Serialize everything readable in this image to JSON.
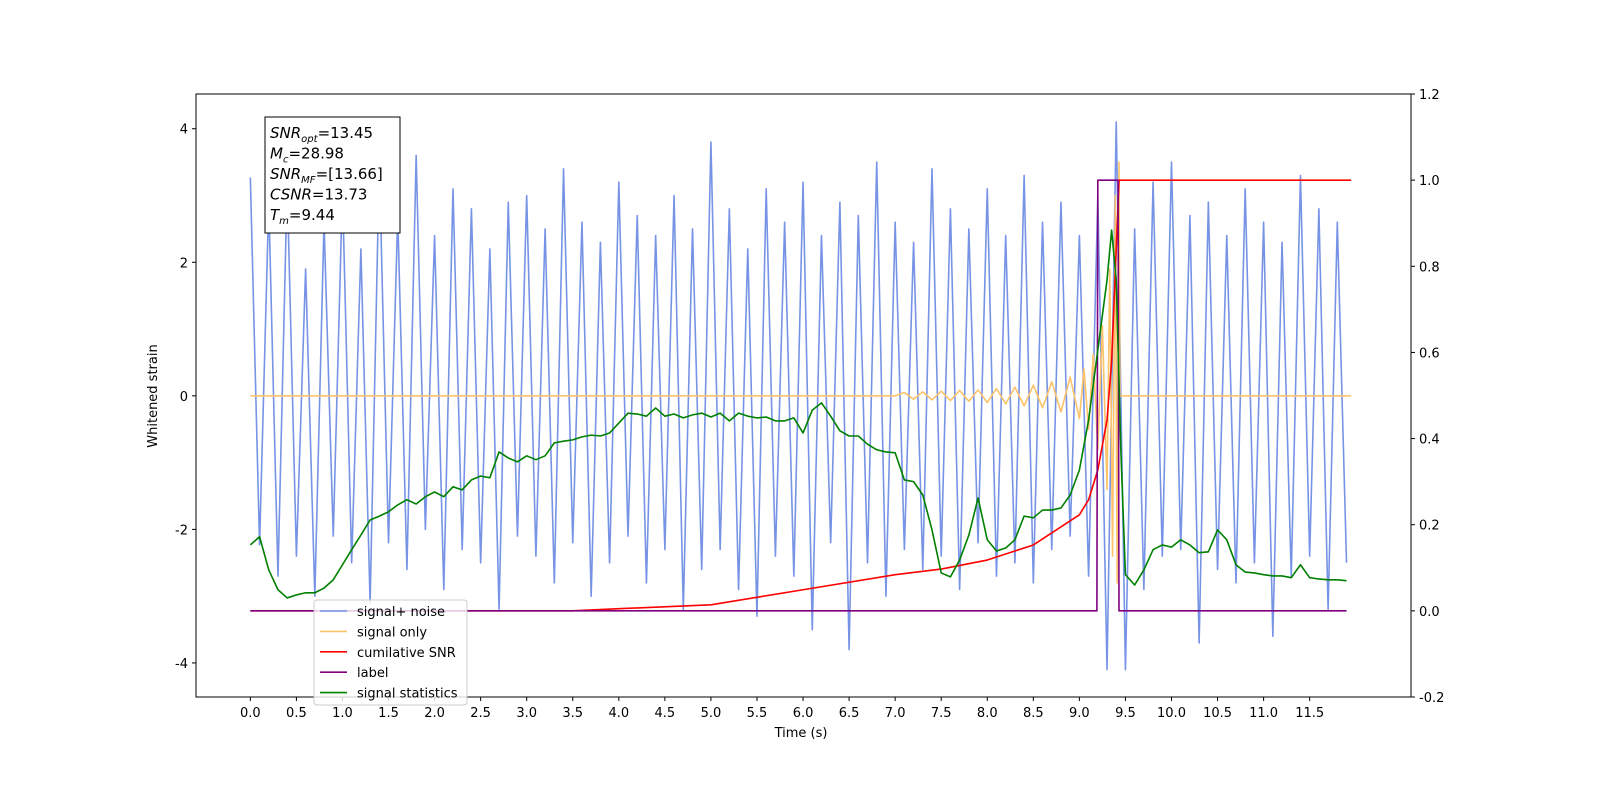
{
  "chart_data": {
    "type": "line",
    "xlabel": "Time (s)",
    "ylabel": "Whitened strain",
    "xlim": [
      -0.59,
      12.6
    ],
    "ylim": [
      -4.51,
      4.52
    ],
    "y2lim": [
      -0.2,
      1.2
    ],
    "xticks": [
      {
        "value": 0,
        "label": "0.0"
      },
      0.5,
      {
        "value": 1,
        "label": "1.0"
      },
      1.5,
      {
        "value": 2,
        "label": "2.0"
      },
      2.5,
      {
        "value": 3,
        "label": "3.0"
      },
      3.5,
      {
        "value": 4,
        "label": "4.0"
      },
      4.5,
      {
        "value": 5,
        "label": "5.0"
      },
      5.5,
      {
        "value": 6,
        "label": "6.0"
      },
      6.5,
      {
        "value": 7,
        "label": "7.0"
      },
      7.5,
      {
        "value": 8,
        "label": "8.0"
      },
      8.5,
      {
        "value": 9,
        "label": "9.0"
      },
      9.5,
      {
        "value": 10,
        "label": "10.0"
      },
      10.5,
      {
        "value": 11,
        "label": "11.0"
      },
      11.5
    ],
    "yticks": [
      -4,
      -2,
      0,
      2,
      4
    ],
    "y2ticks": [
      -0.2,
      {
        "value": 0,
        "label": "0.0"
      },
      0.2,
      0.4,
      0.6,
      0.8,
      {
        "value": 1,
        "label": "1.0"
      },
      1.2
    ],
    "legend": "lower left",
    "annotations": [
      {
        "main": "SNR",
        "sub": "opt",
        "rest": "=13.45"
      },
      {
        "main": "M",
        "sub": "c",
        "rest": "=28.98"
      },
      {
        "main": "SNR",
        "sub": "MF",
        "rest": "=[13.66]"
      },
      {
        "main": "CSNR",
        "rest": "=13.73"
      },
      {
        "main": "T",
        "sub": "m",
        "rest": "=9.44"
      }
    ],
    "series": [
      {
        "name": "signal+ noise",
        "color": "#7793e6",
        "x": [
          0.0,
          0.1,
          0.2,
          0.3,
          0.4,
          0.5,
          0.6,
          0.7,
          0.8,
          0.9,
          1.0,
          1.1,
          1.2,
          1.3,
          1.4,
          1.5,
          1.6,
          1.7,
          1.8,
          1.9,
          2.0,
          2.1,
          2.2,
          2.3,
          2.4,
          2.5,
          2.6,
          2.7,
          2.8,
          2.9,
          3.0,
          3.1,
          3.2,
          3.3,
          3.4,
          3.5,
          3.6,
          3.7,
          3.8,
          3.9,
          4.0,
          4.1,
          4.2,
          4.3,
          4.4,
          4.5,
          4.6,
          4.7,
          4.8,
          4.9,
          5.0,
          5.1,
          5.2,
          5.3,
          5.4,
          5.5,
          5.6,
          5.7,
          5.8,
          5.9,
          6.0,
          6.1,
          6.2,
          6.3,
          6.4,
          6.5,
          6.6,
          6.7,
          6.8,
          6.9,
          7.0,
          7.1,
          7.2,
          7.3,
          7.4,
          7.5,
          7.6,
          7.7,
          7.8,
          7.9,
          8.0,
          8.1,
          8.2,
          8.3,
          8.4,
          8.5,
          8.6,
          8.7,
          8.8,
          8.9,
          9.0,
          9.1,
          9.2,
          9.3,
          9.4,
          9.5,
          9.6,
          9.7,
          9.8,
          9.9,
          10.0,
          10.1,
          10.2,
          10.3,
          10.4,
          10.5,
          10.6,
          10.7,
          10.8,
          10.9,
          11.0,
          11.1,
          11.2,
          11.3,
          11.4,
          11.5,
          11.6,
          11.7,
          11.8,
          11.9
        ],
        "values": [
          3.27,
          -2.23,
          2.9,
          -2.7,
          3.2,
          -2.4,
          1.9,
          -3.0,
          2.6,
          -2.1,
          3.1,
          -2.5,
          2.2,
          -3.1,
          3.5,
          -2.2,
          2.7,
          -2.6,
          3.6,
          -2.0,
          2.4,
          -2.9,
          3.1,
          -2.3,
          2.8,
          -2.5,
          2.2,
          -3.2,
          2.9,
          -2.1,
          3.0,
          -2.4,
          2.5,
          -2.8,
          3.4,
          -2.2,
          2.6,
          -3.0,
          2.3,
          -2.5,
          3.2,
          -2.1,
          2.7,
          -2.8,
          2.4,
          -2.3,
          3.0,
          -3.2,
          2.5,
          -2.6,
          3.8,
          -2.3,
          2.8,
          -2.9,
          2.2,
          -3.3,
          3.1,
          -2.4,
          2.6,
          -2.7,
          3.2,
          -3.5,
          2.4,
          -2.2,
          2.9,
          -3.8,
          2.7,
          -2.5,
          3.5,
          -3.0,
          2.6,
          -2.3,
          2.3,
          -2.6,
          3.4,
          -2.4,
          2.8,
          -2.9,
          2.5,
          -2.2,
          3.1,
          -2.7,
          2.4,
          -2.5,
          3.3,
          -2.8,
          2.6,
          -2.3,
          2.9,
          -2.1,
          2.4,
          -2.7,
          3.0,
          -4.1,
          4.1,
          -4.1,
          2.5,
          -2.9,
          3.2,
          -2.4,
          3.5,
          -2.3,
          2.7,
          -3.7,
          2.9,
          -2.6,
          2.4,
          -2.8,
          3.1,
          -2.5,
          2.6,
          -3.6,
          2.3,
          -2.7,
          3.3,
          -2.4,
          2.8,
          -3.2,
          2.6,
          -2.5
        ]
      },
      {
        "name": "signal only",
        "color": "#fcc36b",
        "x": [
          0,
          7.0,
          7.1,
          7.2,
          7.3,
          7.4,
          7.5,
          7.6,
          7.7,
          7.8,
          7.9,
          8.0,
          8.1,
          8.2,
          8.3,
          8.4,
          8.5,
          8.6,
          8.7,
          8.8,
          8.9,
          9.0,
          9.05,
          9.1,
          9.15,
          9.2,
          9.25,
          9.3,
          9.33,
          9.36,
          9.39,
          9.41,
          9.43,
          9.44,
          11.95
        ],
        "values": [
          0,
          0,
          0.05,
          -0.05,
          0.06,
          -0.06,
          0.07,
          -0.07,
          0.08,
          -0.08,
          0.09,
          -0.1,
          0.11,
          -0.12,
          0.13,
          -0.15,
          0.16,
          -0.18,
          0.21,
          -0.24,
          0.28,
          -0.34,
          0.4,
          -0.5,
          0.62,
          -0.8,
          1.05,
          -1.4,
          1.9,
          -2.4,
          3.0,
          -2.8,
          3.5,
          0,
          0
        ]
      },
      {
        "name": "cumilative SNR",
        "color": "#ff0000",
        "axis": "y2",
        "x": [
          0,
          3.5,
          4.0,
          5.0,
          6.0,
          7.0,
          7.5,
          8.0,
          8.5,
          9.0,
          9.1,
          9.2,
          9.3,
          9.35,
          9.4,
          9.43,
          11.95
        ],
        "values": [
          0,
          0,
          0.005,
          0.014,
          0.049,
          0.084,
          0.097,
          0.118,
          0.153,
          0.223,
          0.258,
          0.327,
          0.443,
          0.58,
          0.84,
          1.0,
          1.0
        ]
      },
      {
        "name": "label",
        "color": "#800080",
        "axis": "y2",
        "x": [
          0,
          9.19,
          9.2,
          9.42,
          9.43,
          11.9
        ],
        "values": [
          0,
          0,
          1,
          1,
          0,
          0
        ]
      },
      {
        "name": "signal statistics",
        "color": "#008000",
        "axis": "y2",
        "x": [
          0.0,
          0.1,
          0.2,
          0.3,
          0.4,
          0.5,
          0.6,
          0.7,
          0.8,
          0.9,
          1.0,
          1.1,
          1.2,
          1.3,
          1.4,
          1.5,
          1.6,
          1.7,
          1.8,
          1.9,
          2.0,
          2.1,
          2.2,
          2.3,
          2.4,
          2.5,
          2.6,
          2.7,
          2.8,
          2.9,
          3.0,
          3.1,
          3.2,
          3.3,
          3.4,
          3.5,
          3.6,
          3.7,
          3.8,
          3.9,
          4.0,
          4.1,
          4.2,
          4.3,
          4.4,
          4.5,
          4.6,
          4.7,
          4.8,
          4.9,
          5.0,
          5.1,
          5.2,
          5.3,
          5.4,
          5.5,
          5.6,
          5.7,
          5.8,
          5.9,
          6.0,
          6.1,
          6.2,
          6.3,
          6.4,
          6.5,
          6.6,
          6.7,
          6.8,
          6.9,
          7.0,
          7.1,
          7.2,
          7.3,
          7.4,
          7.5,
          7.6,
          7.7,
          7.8,
          7.9,
          8.0,
          8.1,
          8.2,
          8.3,
          8.4,
          8.5,
          8.6,
          8.7,
          8.8,
          8.9,
          9.0,
          9.1,
          9.2,
          9.3,
          9.35,
          9.4,
          9.45,
          9.5,
          9.6,
          9.7,
          9.8,
          9.9,
          10.0,
          10.1,
          10.2,
          10.3,
          10.4,
          10.5,
          10.6,
          10.7,
          10.8,
          10.9,
          11.0,
          11.1,
          11.2,
          11.3,
          11.4,
          11.5,
          11.6,
          11.7,
          11.8,
          11.9
        ],
        "values": [
          0.153,
          0.172,
          0.095,
          0.049,
          0.03,
          0.037,
          0.042,
          0.042,
          0.053,
          0.072,
          0.107,
          0.142,
          0.176,
          0.211,
          0.22,
          0.23,
          0.246,
          0.258,
          0.248,
          0.265,
          0.276,
          0.265,
          0.288,
          0.281,
          0.304,
          0.313,
          0.309,
          0.369,
          0.355,
          0.346,
          0.36,
          0.351,
          0.36,
          0.39,
          0.394,
          0.397,
          0.404,
          0.408,
          0.406,
          0.413,
          0.436,
          0.459,
          0.457,
          0.452,
          0.471,
          0.452,
          0.457,
          0.448,
          0.455,
          0.459,
          0.45,
          0.459,
          0.441,
          0.459,
          0.452,
          0.448,
          0.45,
          0.441,
          0.441,
          0.448,
          0.413,
          0.466,
          0.483,
          0.452,
          0.418,
          0.406,
          0.406,
          0.387,
          0.374,
          0.369,
          0.367,
          0.304,
          0.3,
          0.269,
          0.188,
          0.088,
          0.079,
          0.118,
          0.176,
          0.262,
          0.165,
          0.139,
          0.146,
          0.165,
          0.22,
          0.216,
          0.234,
          0.234,
          0.239,
          0.269,
          0.327,
          0.443,
          0.606,
          0.768,
          0.884,
          0.768,
          0.374,
          0.084,
          0.06,
          0.095,
          0.142,
          0.153,
          0.148,
          0.165,
          0.153,
          0.135,
          0.137,
          0.188,
          0.165,
          0.107,
          0.09,
          0.088,
          0.084,
          0.081,
          0.081,
          0.077,
          0.107,
          0.077,
          0.074,
          0.072,
          0.072,
          0.07
        ]
      }
    ]
  }
}
